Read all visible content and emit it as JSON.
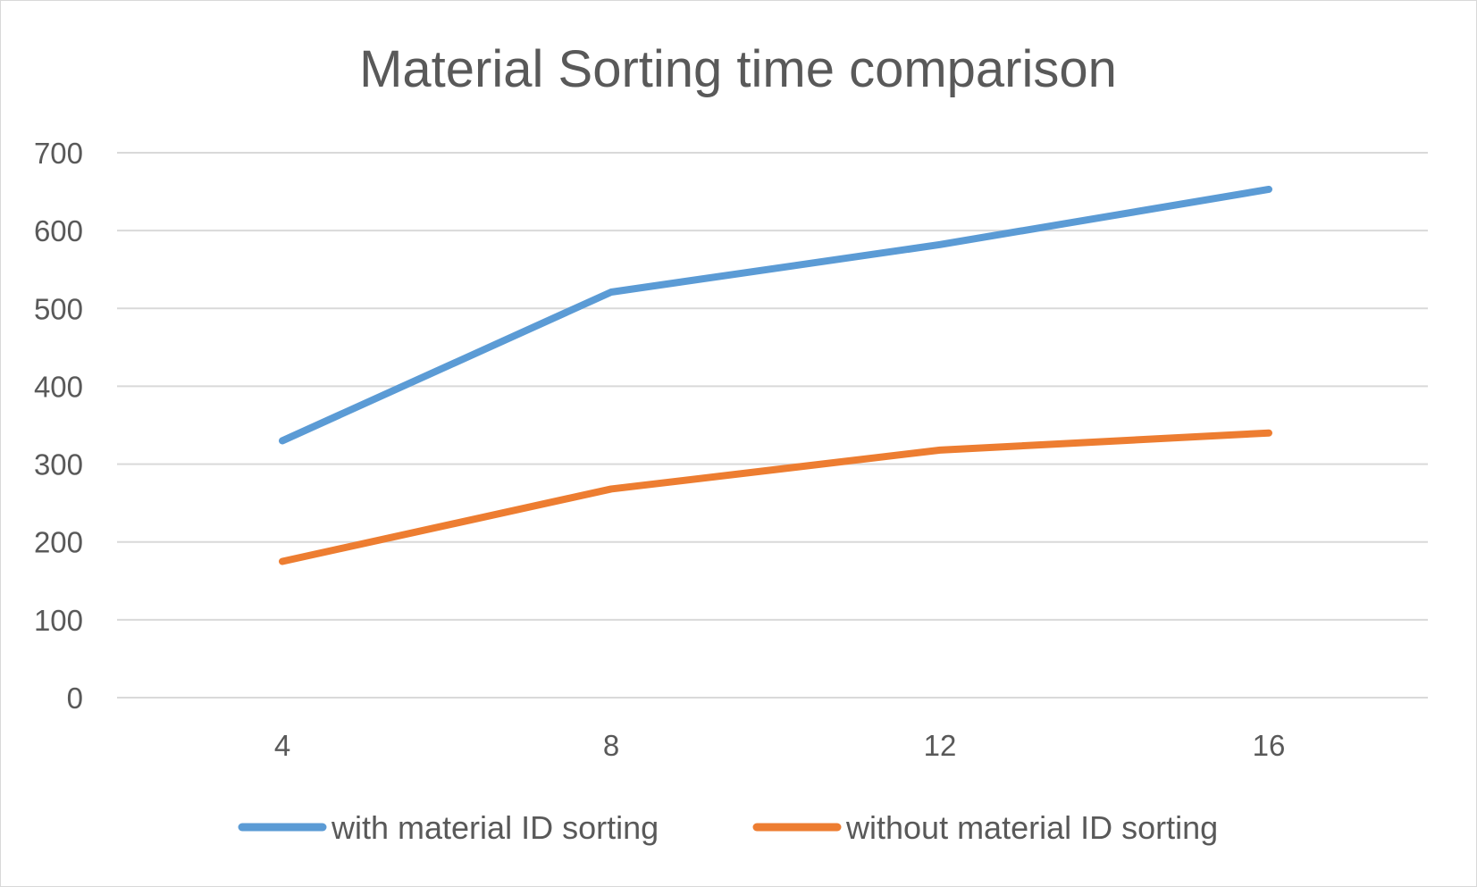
{
  "chart_data": {
    "type": "line",
    "title": "Material Sorting time comparison",
    "xlabel": "",
    "ylabel": "",
    "categories": [
      "4",
      "8",
      "12",
      "16"
    ],
    "ylim": [
      0,
      700
    ],
    "yticks": [
      "0",
      "100",
      "200",
      "300",
      "400",
      "500",
      "600",
      "700"
    ],
    "grid": true,
    "legend_position": "bottom",
    "series": [
      {
        "name": "with material ID sorting",
        "color": "#5b9bd5",
        "values": [
          330,
          521,
          582,
          653
        ]
      },
      {
        "name": "without material ID sorting",
        "color": "#ed7d31",
        "values": [
          175,
          268,
          318,
          340
        ]
      }
    ]
  }
}
